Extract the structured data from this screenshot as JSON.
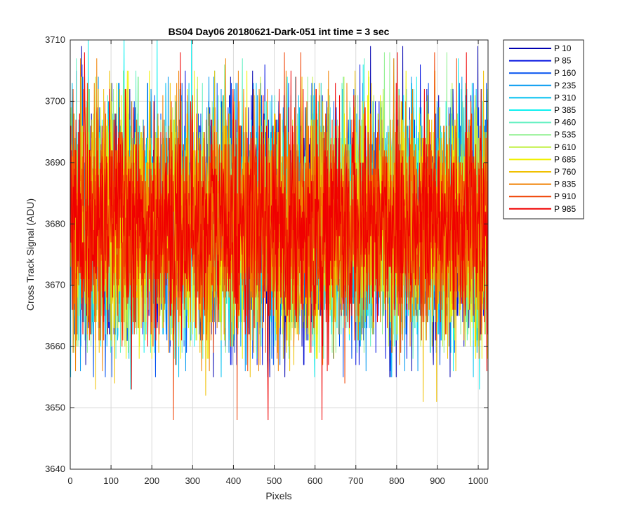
{
  "chart_data": {
    "type": "line",
    "title": "BS04 Day06 20180621-Dark-051 int time = 3 sec",
    "xlabel": "Pixels",
    "ylabel": "Cross Track Signal (ADU)",
    "xlim": [
      0,
      1024
    ],
    "ylim": [
      3640,
      3710
    ],
    "xticks": [
      0,
      100,
      200,
      300,
      400,
      500,
      600,
      700,
      800,
      900,
      1000
    ],
    "yticks": [
      3640,
      3650,
      3660,
      3670,
      3680,
      3690,
      3700,
      3710
    ],
    "grid": true,
    "legend_position": "outside-top-right",
    "signal_mean": 3680,
    "typical_range": [
      3660,
      3700
    ],
    "series": [
      {
        "name": "P 10",
        "color": "#0000b0",
        "peak": 3709,
        "trough": 3655
      },
      {
        "name": "P 85",
        "color": "#0010e0",
        "peak": 3706,
        "trough": 3657
      },
      {
        "name": "P 160",
        "color": "#0050f0",
        "peak": 3703,
        "trough": 3655
      },
      {
        "name": "P 235",
        "color": "#0098f0",
        "peak": 3704,
        "trough": 3656
      },
      {
        "name": "P 310",
        "color": "#00c0f0",
        "peak": 3703,
        "trough": 3655
      },
      {
        "name": "P 385",
        "color": "#10f0f0",
        "peak": 3710,
        "trough": 3653
      },
      {
        "name": "P 460",
        "color": "#60f0c0",
        "peak": 3707,
        "trough": 3658
      },
      {
        "name": "P 535",
        "color": "#90f090",
        "peak": 3708,
        "trough": 3659
      },
      {
        "name": "P 610",
        "color": "#c0f040",
        "peak": 3704,
        "trough": 3660
      },
      {
        "name": "P 685",
        "color": "#f0f000",
        "peak": 3705,
        "trough": 3658
      },
      {
        "name": "P 760",
        "color": "#f0c000",
        "peak": 3705,
        "trough": 3651
      },
      {
        "name": "P 835",
        "color": "#f08000",
        "peak": 3707,
        "trough": 3656
      },
      {
        "name": "P 910",
        "color": "#f04000",
        "peak": 3708,
        "trough": 3648
      },
      {
        "name": "P 985",
        "color": "#f00000",
        "peak": 3708,
        "trough": 3648
      }
    ]
  }
}
